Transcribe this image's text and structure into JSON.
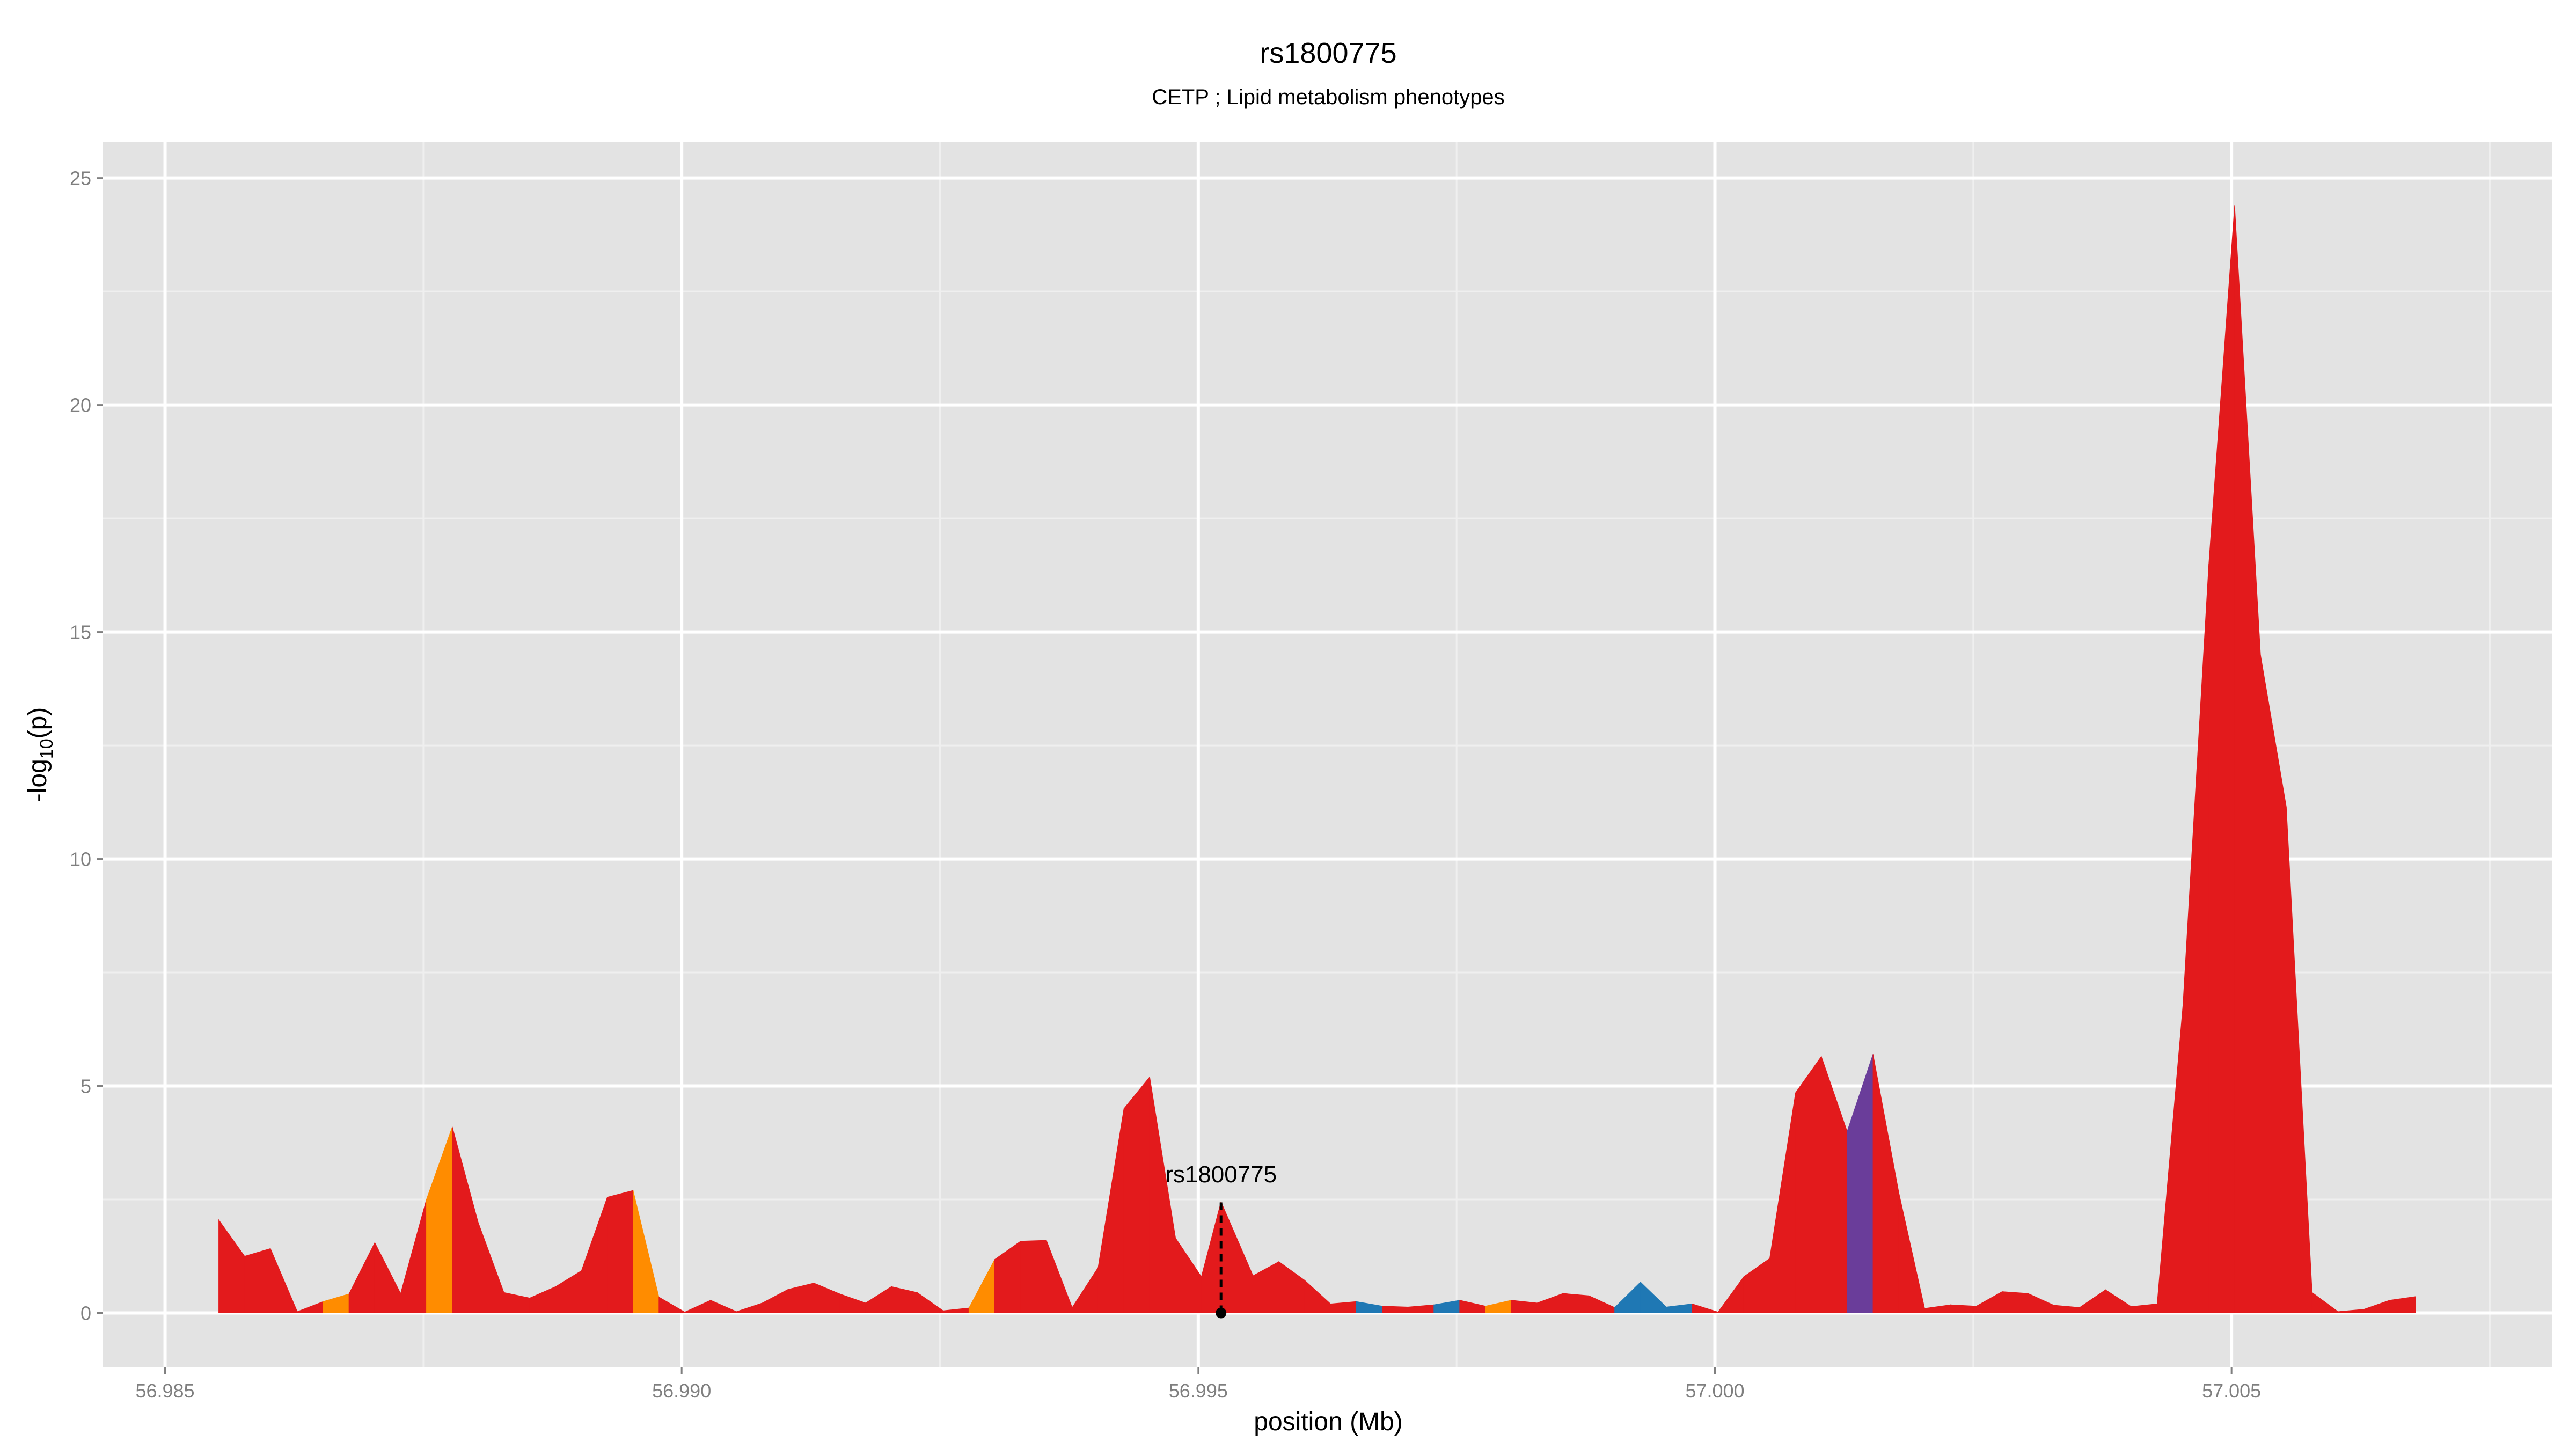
{
  "chart_data": {
    "type": "area",
    "title": "rs1800775",
    "subtitle": "CETP ; Lipid metabolism phenotypes",
    "xlabel": "position (Mb)",
    "ylabel_main": "-log",
    "ylabel_sub": "10",
    "ylabel_tail": "(p)",
    "xlim": [
      56.9844,
      57.0081
    ],
    "ylim": [
      -1.2,
      25.8
    ],
    "x_ticks": [
      56.985,
      56.99,
      56.995,
      57.0,
      57.005
    ],
    "x_tick_labels": [
      "56.985",
      "56.990",
      "56.995",
      "57.000",
      "57.005"
    ],
    "y_ticks": [
      0,
      5,
      10,
      15,
      20,
      25
    ],
    "y_tick_labels": [
      "0",
      "5",
      "10",
      "15",
      "20",
      "25"
    ],
    "grid": true,
    "panel_background": "#e3e3e3",
    "colors": {
      "red": "#e31a1c",
      "orange": "#ff8c00",
      "blue": "#1f78b4",
      "purple": "#6a3d9a"
    },
    "points": [
      {
        "x": 56.98552,
        "y": 2.05,
        "c": "red"
      },
      {
        "x": 56.98577,
        "y": 1.25,
        "c": "red"
      },
      {
        "x": 56.98602,
        "y": 1.42,
        "c": "red"
      },
      {
        "x": 56.98628,
        "y": 0.03,
        "c": "red"
      },
      {
        "x": 56.98653,
        "y": 0.25,
        "c": "orange"
      },
      {
        "x": 56.98678,
        "y": 0.42,
        "c": "red"
      },
      {
        "x": 56.98703,
        "y": 1.55,
        "c": "red"
      },
      {
        "x": 56.98728,
        "y": 0.43,
        "c": "red"
      },
      {
        "x": 56.98753,
        "y": 2.5,
        "c": "orange"
      },
      {
        "x": 56.98778,
        "y": 4.1,
        "c": "red"
      },
      {
        "x": 56.98803,
        "y": 2.0,
        "c": "red"
      },
      {
        "x": 56.98828,
        "y": 0.45,
        "c": "red"
      },
      {
        "x": 56.98853,
        "y": 0.33,
        "c": "red"
      },
      {
        "x": 56.98878,
        "y": 0.58,
        "c": "red"
      },
      {
        "x": 56.98903,
        "y": 0.93,
        "c": "red"
      },
      {
        "x": 56.98928,
        "y": 2.55,
        "c": "red"
      },
      {
        "x": 56.98953,
        "y": 2.7,
        "c": "orange"
      },
      {
        "x": 56.98978,
        "y": 0.35,
        "c": "red"
      },
      {
        "x": 56.99003,
        "y": 0.02,
        "c": "red"
      },
      {
        "x": 56.99028,
        "y": 0.28,
        "c": "red"
      },
      {
        "x": 56.99053,
        "y": 0.03,
        "c": "red"
      },
      {
        "x": 56.99078,
        "y": 0.22,
        "c": "red"
      },
      {
        "x": 56.99103,
        "y": 0.52,
        "c": "red"
      },
      {
        "x": 56.99128,
        "y": 0.66,
        "c": "red"
      },
      {
        "x": 56.99153,
        "y": 0.42,
        "c": "red"
      },
      {
        "x": 56.99178,
        "y": 0.22,
        "c": "red"
      },
      {
        "x": 56.99203,
        "y": 0.58,
        "c": "red"
      },
      {
        "x": 56.99228,
        "y": 0.45,
        "c": "red"
      },
      {
        "x": 56.99253,
        "y": 0.05,
        "c": "red"
      },
      {
        "x": 56.99278,
        "y": 0.11,
        "c": "orange"
      },
      {
        "x": 56.99303,
        "y": 1.18,
        "c": "red"
      },
      {
        "x": 56.99328,
        "y": 1.58,
        "c": "red"
      },
      {
        "x": 56.99353,
        "y": 1.6,
        "c": "red"
      },
      {
        "x": 56.99378,
        "y": 0.12,
        "c": "red"
      },
      {
        "x": 56.99403,
        "y": 1.0,
        "c": "red"
      },
      {
        "x": 56.99428,
        "y": 4.5,
        "c": "red"
      },
      {
        "x": 56.99453,
        "y": 5.2,
        "c": "red"
      },
      {
        "x": 56.99478,
        "y": 1.65,
        "c": "red"
      },
      {
        "x": 56.99503,
        "y": 0.8,
        "c": "red"
      },
      {
        "x": 56.99522,
        "y": 2.45,
        "c": "red"
      },
      {
        "x": 56.99553,
        "y": 0.82,
        "c": "red"
      },
      {
        "x": 56.99578,
        "y": 1.13,
        "c": "red"
      },
      {
        "x": 56.99603,
        "y": 0.72,
        "c": "red"
      },
      {
        "x": 56.99628,
        "y": 0.2,
        "c": "red"
      },
      {
        "x": 56.99653,
        "y": 0.25,
        "c": "blue"
      },
      {
        "x": 56.99678,
        "y": 0.15,
        "c": "red"
      },
      {
        "x": 56.99703,
        "y": 0.13,
        "c": "red"
      },
      {
        "x": 56.99728,
        "y": 0.18,
        "c": "blue"
      },
      {
        "x": 56.99753,
        "y": 0.28,
        "c": "red"
      },
      {
        "x": 56.99778,
        "y": 0.15,
        "c": "orange"
      },
      {
        "x": 56.99803,
        "y": 0.28,
        "c": "red"
      },
      {
        "x": 56.99828,
        "y": 0.22,
        "c": "red"
      },
      {
        "x": 56.99853,
        "y": 0.43,
        "c": "red"
      },
      {
        "x": 56.99878,
        "y": 0.38,
        "c": "red"
      },
      {
        "x": 56.99903,
        "y": 0.12,
        "c": "blue"
      },
      {
        "x": 56.99928,
        "y": 0.68,
        "c": "blue"
      },
      {
        "x": 56.99953,
        "y": 0.13,
        "c": "blue"
      },
      {
        "x": 56.99978,
        "y": 0.2,
        "c": "red"
      },
      {
        "x": 57.00003,
        "y": 0.02,
        "c": "red"
      },
      {
        "x": 57.00028,
        "y": 0.8,
        "c": "red"
      },
      {
        "x": 57.00053,
        "y": 1.2,
        "c": "red"
      },
      {
        "x": 57.00078,
        "y": 4.85,
        "c": "red"
      },
      {
        "x": 57.00103,
        "y": 5.65,
        "c": "red"
      },
      {
        "x": 57.00128,
        "y": 4.0,
        "c": "purple"
      },
      {
        "x": 57.00153,
        "y": 5.7,
        "c": "red"
      },
      {
        "x": 57.00178,
        "y": 2.65,
        "c": "red"
      },
      {
        "x": 57.00203,
        "y": 0.1,
        "c": "red"
      },
      {
        "x": 57.00228,
        "y": 0.18,
        "c": "red"
      },
      {
        "x": 57.00253,
        "y": 0.15,
        "c": "red"
      },
      {
        "x": 57.00278,
        "y": 0.47,
        "c": "red"
      },
      {
        "x": 57.00303,
        "y": 0.43,
        "c": "red"
      },
      {
        "x": 57.00328,
        "y": 0.17,
        "c": "red"
      },
      {
        "x": 57.00353,
        "y": 0.12,
        "c": "red"
      },
      {
        "x": 57.00378,
        "y": 0.51,
        "c": "red"
      },
      {
        "x": 57.00403,
        "y": 0.14,
        "c": "red"
      },
      {
        "x": 57.00428,
        "y": 0.2,
        "c": "red"
      },
      {
        "x": 57.00453,
        "y": 6.8,
        "c": "red"
      },
      {
        "x": 57.00478,
        "y": 16.5,
        "c": "red"
      },
      {
        "x": 57.00503,
        "y": 24.4,
        "c": "red"
      },
      {
        "x": 57.00528,
        "y": 14.5,
        "c": "red"
      },
      {
        "x": 57.00553,
        "y": 11.15,
        "c": "red"
      },
      {
        "x": 57.00578,
        "y": 0.45,
        "c": "red"
      },
      {
        "x": 57.00603,
        "y": 0.03,
        "c": "red"
      },
      {
        "x": 57.00628,
        "y": 0.08,
        "c": "red"
      },
      {
        "x": 57.00653,
        "y": 0.28,
        "c": "red"
      },
      {
        "x": 57.00678,
        "y": 0.36,
        "c": "red"
      }
    ],
    "annotation": {
      "label": "rs1800775",
      "x": 56.99522,
      "y": 2.45
    }
  }
}
